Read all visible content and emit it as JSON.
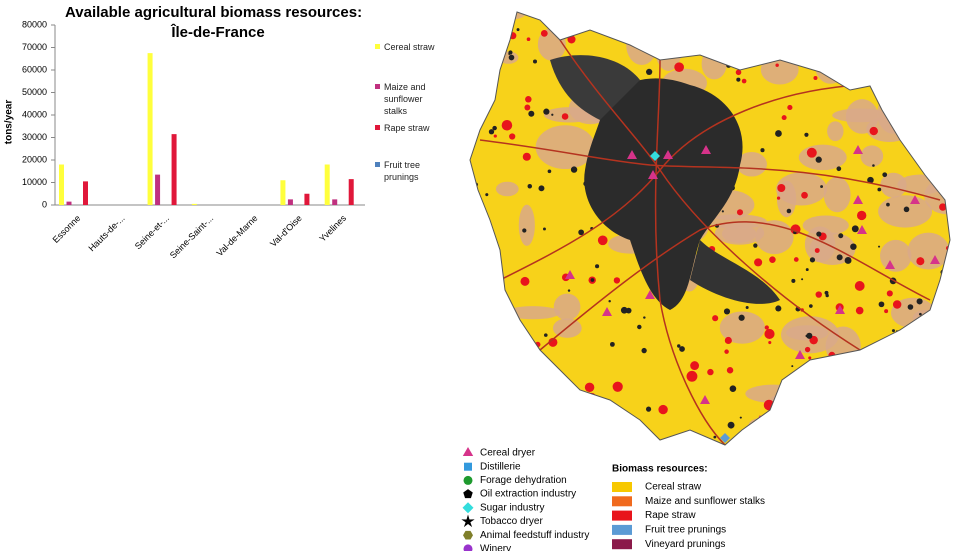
{
  "chart_data": {
    "type": "bar",
    "title": "Available agricultural biomass resources:",
    "subtitle": "Île-de-France",
    "y_label": "tons/year",
    "categories": [
      "Essonne",
      "Hauts-de-...",
      "Seine-et-...",
      "Seine-Saint-...",
      "Val-de-Marne",
      "Val-d'Oise",
      "Yvelines"
    ],
    "series": [
      {
        "name": "Cereal straw",
        "color": "#ffff3c",
        "values": [
          18000,
          0,
          67500,
          500,
          0,
          11000,
          18000
        ]
      },
      {
        "name": "Maize and sunflower stalks",
        "color": "#c0307f",
        "values": [
          1500,
          0,
          13500,
          0,
          0,
          2500,
          2500
        ]
      },
      {
        "name": "Rape straw",
        "color": "#e0173a",
        "values": [
          10500,
          0,
          31500,
          0,
          0,
          5000,
          11500
        ]
      },
      {
        "name": "Fruit tree prunings",
        "color": "#4f81bd",
        "values": [
          0,
          0,
          0,
          0,
          0,
          0,
          0
        ]
      }
    ],
    "ylim": [
      0,
      80000
    ],
    "yticks": [
      0,
      10000,
      20000,
      30000,
      40000,
      50000,
      60000,
      70000,
      80000
    ],
    "grid": false
  },
  "map_legend": {
    "facilities": [
      {
        "name": "Cereal dryer",
        "color": "#d6338a",
        "shape": "triangle"
      },
      {
        "name": "Distillerie",
        "color": "#3399dd",
        "shape": "square"
      },
      {
        "name": "Forage dehydration",
        "color": "#1e9a2e",
        "shape": "circle"
      },
      {
        "name": "Oil extraction industry",
        "color": "#000000",
        "shape": "pentagon"
      },
      {
        "name": "Sugar industry",
        "color": "#33dddd",
        "shape": "diamond"
      },
      {
        "name": "Tobacco dryer",
        "color": "#000000",
        "shape": "star"
      },
      {
        "name": "Animal feedstuff industry",
        "color": "#7f7f2a",
        "shape": "hexagon"
      },
      {
        "name": "Winery",
        "color": "#9933cc",
        "shape": "circle"
      }
    ],
    "resources_title": "Biomass resources:",
    "resources": [
      {
        "name": "Cereal straw",
        "color": "#f7c800"
      },
      {
        "name": "Maize and sunflower stalks",
        "color": "#f06a1e"
      },
      {
        "name": "Rape straw",
        "color": "#e8141c"
      },
      {
        "name": "Fruit tree prunings",
        "color": "#5b9bd5"
      },
      {
        "name": "Vineyard prunings",
        "color": "#8b1a4a"
      }
    ]
  }
}
